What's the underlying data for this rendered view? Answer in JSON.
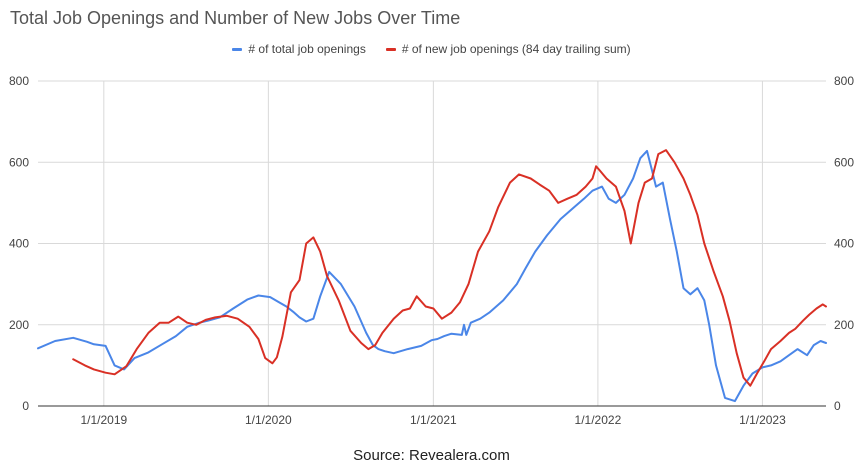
{
  "chart_title": "Total Job Openings and Number of New Jobs Over Time",
  "source": "Source: Revealera.com",
  "colors": {
    "total": "#4a86e8",
    "new": "#d93025",
    "grid": "#d9d9d9",
    "axis": "#333333"
  },
  "chart_data": {
    "type": "line",
    "title": "Total Job Openings and Number of New Jobs Over Time",
    "xlabel": "",
    "ylabel": "",
    "ylim": [
      0,
      800
    ],
    "xlim": [
      "2018-08-08",
      "2023-05-22"
    ],
    "y_ticks": [
      "0",
      "200",
      "400",
      "600",
      "800"
    ],
    "y_tick_values": [
      0,
      200,
      400,
      600,
      800
    ],
    "x_tick_labels": [
      "1/1/2019",
      "1/1/2020",
      "1/1/2021",
      "1/1/2022",
      "1/1/2023"
    ],
    "x_tick_values": [
      "2019-01-01",
      "2020-01-01",
      "2021-01-01",
      "2022-01-01",
      "2023-01-01"
    ],
    "grid": true,
    "legend_position": "top",
    "series": [
      {
        "name": "# of total job openings",
        "color": "#4a86e8",
        "x": [
          "2018-08-08",
          "2018-09-15",
          "2018-10-25",
          "2018-11-25",
          "2018-12-10",
          "2019-01-05",
          "2019-01-25",
          "2019-02-15",
          "2019-03-10",
          "2019-04-10",
          "2019-05-10",
          "2019-06-10",
          "2019-07-05",
          "2019-08-01",
          "2019-08-20",
          "2019-09-15",
          "2019-10-15",
          "2019-11-15",
          "2019-12-10",
          "2020-01-05",
          "2020-01-25",
          "2020-02-10",
          "2020-02-25",
          "2020-03-10",
          "2020-03-25",
          "2020-04-10",
          "2020-04-25",
          "2020-05-15",
          "2020-06-10",
          "2020-07-10",
          "2020-08-05",
          "2020-08-20",
          "2020-09-01",
          "2020-09-15",
          "2020-10-05",
          "2020-11-05",
          "2020-12-05",
          "2020-12-28",
          "2021-01-10",
          "2021-01-25",
          "2021-02-10",
          "2021-03-05",
          "2021-03-10",
          "2021-03-15",
          "2021-03-25",
          "2021-04-15",
          "2021-05-05",
          "2021-06-05",
          "2021-07-05",
          "2021-07-25",
          "2021-08-15",
          "2021-09-10",
          "2021-10-10",
          "2021-11-10",
          "2021-12-01",
          "2021-12-20",
          "2022-01-10",
          "2022-01-25",
          "2022-02-10",
          "2022-03-01",
          "2022-03-20",
          "2022-04-05",
          "2022-04-20",
          "2022-05-01",
          "2022-05-10",
          "2022-05-25",
          "2022-06-10",
          "2022-06-25",
          "2022-07-10",
          "2022-07-25",
          "2022-08-10",
          "2022-08-25",
          "2022-09-05",
          "2022-09-20",
          "2022-10-10",
          "2022-11-01",
          "2022-11-20",
          "2022-12-10",
          "2023-01-01",
          "2023-01-20",
          "2023-02-10",
          "2023-03-01",
          "2023-03-20",
          "2023-04-10",
          "2023-04-25",
          "2023-05-10",
          "2023-05-22"
        ],
        "values": [
          142,
          160,
          168,
          158,
          152,
          148,
          100,
          90,
          118,
          132,
          152,
          172,
          195,
          205,
          210,
          218,
          240,
          262,
          272,
          268,
          255,
          245,
          232,
          218,
          208,
          215,
          270,
          330,
          300,
          245,
          180,
          150,
          140,
          135,
          130,
          140,
          148,
          162,
          165,
          172,
          178,
          175,
          200,
          175,
          205,
          215,
          230,
          260,
          300,
          340,
          380,
          420,
          460,
          490,
          510,
          530,
          540,
          510,
          500,
          520,
          560,
          610,
          628,
          580,
          540,
          550,
          460,
          380,
          290,
          275,
          290,
          260,
          200,
          100,
          20,
          12,
          50,
          80,
          95,
          100,
          110,
          125,
          140,
          125,
          150,
          160,
          155
        ]
      },
      {
        "name": "# of new job openings (84 day trailing sum)",
        "color": "#d93025",
        "x": [
          "2018-10-25",
          "2018-11-20",
          "2018-12-10",
          "2019-01-05",
          "2019-01-25",
          "2019-02-20",
          "2019-03-15",
          "2019-04-10",
          "2019-05-05",
          "2019-05-25",
          "2019-06-15",
          "2019-07-05",
          "2019-07-25",
          "2019-08-15",
          "2019-09-05",
          "2019-10-01",
          "2019-10-25",
          "2019-11-20",
          "2019-12-10",
          "2019-12-25",
          "2020-01-10",
          "2020-01-20",
          "2020-02-01",
          "2020-02-20",
          "2020-03-10",
          "2020-03-25",
          "2020-04-10",
          "2020-04-25",
          "2020-05-10",
          "2020-06-05",
          "2020-07-01",
          "2020-07-25",
          "2020-08-10",
          "2020-08-25",
          "2020-09-10",
          "2020-10-05",
          "2020-10-25",
          "2020-11-10",
          "2020-11-25",
          "2020-12-15",
          "2021-01-01",
          "2021-01-20",
          "2021-02-10",
          "2021-03-01",
          "2021-03-20",
          "2021-04-10",
          "2021-05-05",
          "2021-05-25",
          "2021-06-20",
          "2021-07-10",
          "2021-08-05",
          "2021-08-25",
          "2021-09-15",
          "2021-10-05",
          "2021-10-25",
          "2021-11-15",
          "2021-12-05",
          "2021-12-20",
          "2021-12-28",
          "2022-01-05",
          "2022-01-20",
          "2022-02-10",
          "2022-03-01",
          "2022-03-15",
          "2022-04-01",
          "2022-04-15",
          "2022-05-01",
          "2022-05-15",
          "2022-06-01",
          "2022-06-20",
          "2022-07-10",
          "2022-07-25",
          "2022-08-10",
          "2022-08-25",
          "2022-09-15",
          "2022-10-05",
          "2022-10-20",
          "2022-11-05",
          "2022-11-20",
          "2022-12-05",
          "2022-12-20",
          "2023-01-05",
          "2023-01-20",
          "2023-02-10",
          "2023-03-01",
          "2023-03-15",
          "2023-04-01",
          "2023-04-15",
          "2023-05-01",
          "2023-05-15",
          "2023-05-22"
        ],
        "values": [
          115,
          100,
          90,
          82,
          78,
          98,
          140,
          180,
          205,
          205,
          220,
          205,
          200,
          212,
          218,
          222,
          215,
          195,
          165,
          118,
          105,
          120,
          170,
          280,
          310,
          400,
          415,
          380,
          320,
          260,
          185,
          155,
          140,
          150,
          180,
          215,
          235,
          240,
          270,
          245,
          240,
          215,
          230,
          255,
          300,
          380,
          430,
          490,
          550,
          570,
          560,
          545,
          530,
          500,
          510,
          520,
          540,
          560,
          590,
          580,
          560,
          540,
          480,
          400,
          500,
          550,
          560,
          620,
          630,
          600,
          560,
          520,
          470,
          400,
          330,
          270,
          210,
          130,
          70,
          50,
          80,
          110,
          140,
          160,
          180,
          190,
          210,
          225,
          240,
          250,
          245
        ]
      }
    ]
  }
}
